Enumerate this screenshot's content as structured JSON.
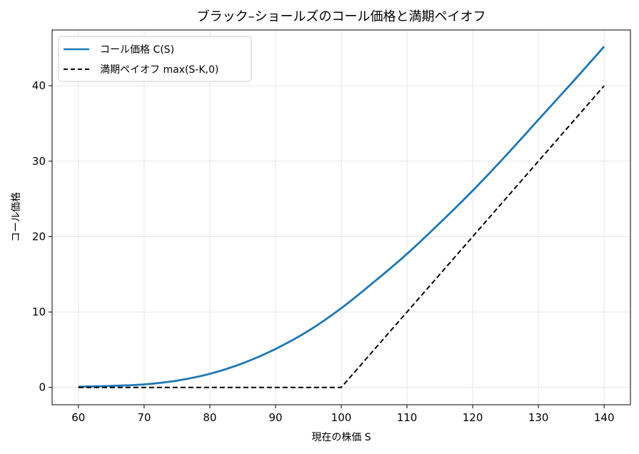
{
  "chart_data": {
    "type": "line",
    "title": "ブラック–ショールズのコール価格と満期ペイオフ",
    "xlabel": "現在の株価 S",
    "ylabel": "コール価格",
    "xlim": [
      56,
      144
    ],
    "ylim": [
      -2.3,
      47.4
    ],
    "xticks": [
      60,
      70,
      80,
      90,
      100,
      110,
      120,
      130,
      140
    ],
    "yticks": [
      0,
      10,
      20,
      30,
      40
    ],
    "grid": true,
    "legend_position": "top-left",
    "series": [
      {
        "name": "コール価格 C(S)",
        "color": "#1f77b4",
        "style": "solid",
        "x": [
          60,
          65,
          70,
          75,
          80,
          85,
          90,
          95,
          100,
          105,
          110,
          115,
          120,
          125,
          130,
          135,
          140
        ],
        "y": [
          0.1,
          0.2,
          0.4,
          0.9,
          1.8,
          3.2,
          5.1,
          7.5,
          10.5,
          14.0,
          17.7,
          21.8,
          26.1,
          30.7,
          35.5,
          40.3,
          45.2
        ]
      },
      {
        "name": "満期ペイオフ max(S-K,0)",
        "color": "#000000",
        "style": "dashed",
        "x": [
          60,
          100,
          140
        ],
        "y": [
          0,
          0,
          40
        ]
      }
    ]
  }
}
